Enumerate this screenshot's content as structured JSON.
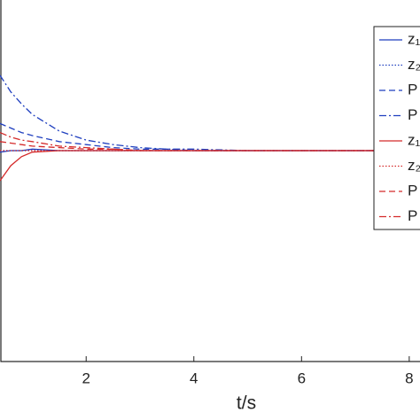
{
  "chart_data": {
    "type": "line",
    "x_label": "t/s",
    "x": [
      0.4,
      0.6,
      0.8,
      1,
      1.5,
      2,
      2.5,
      3,
      3.5,
      4,
      5,
      6,
      7,
      8,
      8.2
    ],
    "xlim": [
      0.4,
      8.2
    ],
    "xticks": [
      2,
      4,
      6,
      8
    ],
    "ylim": [
      -1.4,
      1
    ],
    "legend": "upper right",
    "series": [
      {
        "name": "z₁",
        "color": "#1f3fbf",
        "dash": "solid",
        "values": [
          -0.01,
          0,
          0,
          0.01,
          0,
          0,
          0,
          0,
          0,
          0,
          0,
          0,
          0,
          0,
          0
        ]
      },
      {
        "name": "z₂",
        "color": "#1f3fbf",
        "dash": "dotted",
        "values": [
          0,
          0,
          0,
          0,
          0,
          0,
          0,
          0,
          0,
          0,
          0,
          0,
          0,
          0,
          0
        ]
      },
      {
        "name": "P",
        "color": "#1f3fbf",
        "dash": "dashed",
        "values": [
          0.18,
          0.15,
          0.12,
          0.1,
          0.06,
          0.04,
          0.02,
          0.01,
          0.01,
          0,
          0,
          0,
          0,
          0,
          0
        ]
      },
      {
        "name": "P",
        "color": "#1f3fbf",
        "dash": "dashdot",
        "values": [
          0.5,
          0.39,
          0.31,
          0.24,
          0.13,
          0.07,
          0.04,
          0.02,
          0.01,
          0.01,
          0,
          0,
          0,
          0,
          0
        ]
      },
      {
        "name": "z₁",
        "color": "#d42a2a",
        "dash": "solid",
        "values": [
          -0.2,
          -0.1,
          -0.04,
          -0.01,
          0,
          0,
          0,
          0,
          0,
          0,
          0,
          0,
          0,
          0,
          0
        ]
      },
      {
        "name": "z₂",
        "color": "#d42a2a",
        "dash": "dotted",
        "values": [
          0,
          0,
          0,
          0,
          0,
          0,
          0,
          0,
          0,
          0,
          0,
          0,
          0,
          0,
          0
        ]
      },
      {
        "name": "P",
        "color": "#d42a2a",
        "dash": "dashed",
        "values": [
          0.06,
          0.05,
          0.04,
          0.03,
          0.02,
          0.01,
          0.01,
          0,
          0,
          0,
          0,
          0,
          0,
          0,
          0
        ]
      },
      {
        "name": "P",
        "color": "#d42a2a",
        "dash": "dashdot",
        "values": [
          0.12,
          0.09,
          0.07,
          0.06,
          0.03,
          0.02,
          0.01,
          0,
          0,
          0,
          0,
          0,
          0,
          0,
          0
        ]
      }
    ]
  }
}
